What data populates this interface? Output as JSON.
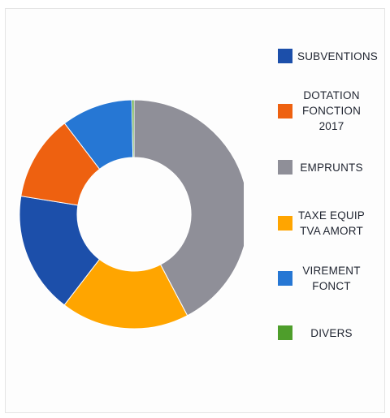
{
  "chart_data": {
    "type": "pie",
    "variant": "donut",
    "legend_position": "right",
    "slices": [
      {
        "label": "EMPRUNTS",
        "value": 42,
        "color": "#8f8f98"
      },
      {
        "label": "TAXE EQUIP\nTVA AMORT",
        "value": 18,
        "color": "#ffa500"
      },
      {
        "label": "SUBVENTIONS",
        "value": 17,
        "color": "#1c4faa"
      },
      {
        "label": "DOTATION\nFONCTION\n2017",
        "value": 12,
        "color": "#ee6110"
      },
      {
        "label": "VIREMENT\nFONCT",
        "value": 10,
        "color": "#2677d4"
      },
      {
        "label": "DIVERS",
        "value": 0.3,
        "color": "#4e9e2b"
      }
    ],
    "legend": [
      {
        "label": "SUBVENTIONS",
        "color": "#1c4faa"
      },
      {
        "label": "DOTATION\nFONCTION\n2017",
        "color": "#ee6110"
      },
      {
        "label": "EMPRUNTS",
        "color": "#8f8f98"
      },
      {
        "label": "TAXE EQUIP\nTVA AMORT",
        "color": "#ffa500"
      },
      {
        "label": "VIREMENT\nFONCT",
        "color": "#2677d4"
      },
      {
        "label": "DIVERS",
        "color": "#4e9e2b"
      }
    ]
  }
}
